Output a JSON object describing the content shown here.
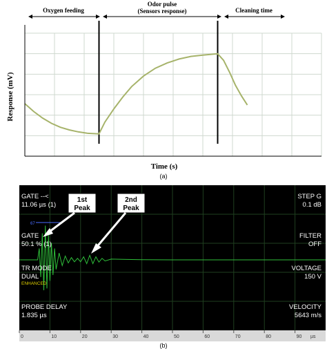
{
  "figure_a": {
    "caption": "(a)",
    "phases": {
      "oxygen": "Oxygen feeding",
      "odor_line1": "Odor pulse",
      "odor_line2": "(Sensors response)",
      "cleaning": "Cleaning time"
    },
    "colors": {
      "curve": "#a6b36a",
      "marker": "#000000",
      "grid": "#cfd8cf"
    }
  },
  "figure_b": {
    "caption": "(b)",
    "readouts": {
      "gate1_label": "GATE --<",
      "gate1_value": "11.06 µs (1)",
      "gate2_label": "GATE",
      "gate2_value": "50.1 % (1)",
      "tr_mode_label": "TR MODE",
      "tr_mode_value": "DUAL",
      "tr_mode_sub": "ENHANCED",
      "probe_delay_label": "PROBE DELAY",
      "probe_delay_value": "1.835 µs",
      "step_label": "STEP G",
      "step_value": "0.1 dB",
      "filter_label": "FILTER",
      "filter_value": "OFF",
      "voltage_label": "VOLTAGE",
      "voltage_value": "150 V",
      "velocity_label": "VELOCITY",
      "velocity_value": "5643 m/s"
    },
    "callouts": [
      {
        "line1": "1st",
        "line2": "Peak"
      },
      {
        "line1": "2nd",
        "line2": "Peak"
      }
    ],
    "gate_marker": "67",
    "colors": {
      "background": "#000000",
      "signal": "#2fbf3a",
      "text": "#ffffff",
      "sub_text": "#e0d000",
      "gate": "#4a6bff",
      "grid": "#1f3f1f"
    }
  },
  "chart_data": [
    {
      "type": "line",
      "title": "",
      "xlabel": "Time (s)",
      "ylabel": "Response (mV)",
      "xlim": [
        0,
        100
      ],
      "ylim": [
        0,
        100
      ],
      "grid": true,
      "phase_boundaries_x": [
        25,
        65
      ],
      "series": [
        {
          "x": [
            0,
            3,
            6,
            9,
            12,
            15,
            18,
            21,
            25,
            27,
            30,
            33,
            36,
            40,
            44,
            48,
            52,
            56,
            60,
            65,
            67,
            69,
            71,
            73,
            75
          ],
          "values": [
            40,
            34,
            29,
            25,
            22,
            20,
            18.5,
            17.5,
            17,
            26,
            36,
            45,
            53,
            61,
            67,
            71,
            74,
            76,
            77,
            78,
            73,
            64,
            54,
            46,
            39
          ]
        }
      ]
    },
    {
      "type": "line",
      "title": "",
      "xlabel": "",
      "ylabel": "",
      "x_unit": "µs",
      "xlim": [
        0,
        100
      ],
      "ylim": [
        -100,
        100
      ],
      "xticks": [
        0,
        10,
        20,
        30,
        40,
        50,
        60,
        70,
        80,
        90
      ],
      "grid": true,
      "series": [
        {
          "x": [
            0,
            6,
            6.5,
            7,
            7.5,
            8,
            8.5,
            9,
            9.5,
            10,
            10.5,
            11,
            11.5,
            12,
            13,
            14,
            15,
            16,
            17,
            18,
            19,
            20,
            21,
            22,
            23,
            24,
            25,
            26,
            27,
            28,
            30,
            35,
            40,
            50,
            60,
            70,
            80,
            90,
            100
          ],
          "values": [
            0,
            0,
            30,
            -45,
            70,
            -80,
            90,
            -75,
            65,
            -55,
            45,
            -40,
            30,
            -25,
            18,
            -15,
            10,
            -8,
            6,
            -5,
            4,
            -5,
            8,
            -10,
            12,
            -10,
            8,
            -6,
            4,
            -3,
            2,
            1,
            0.5,
            0,
            0,
            0,
            0,
            0,
            0
          ]
        }
      ]
    }
  ]
}
